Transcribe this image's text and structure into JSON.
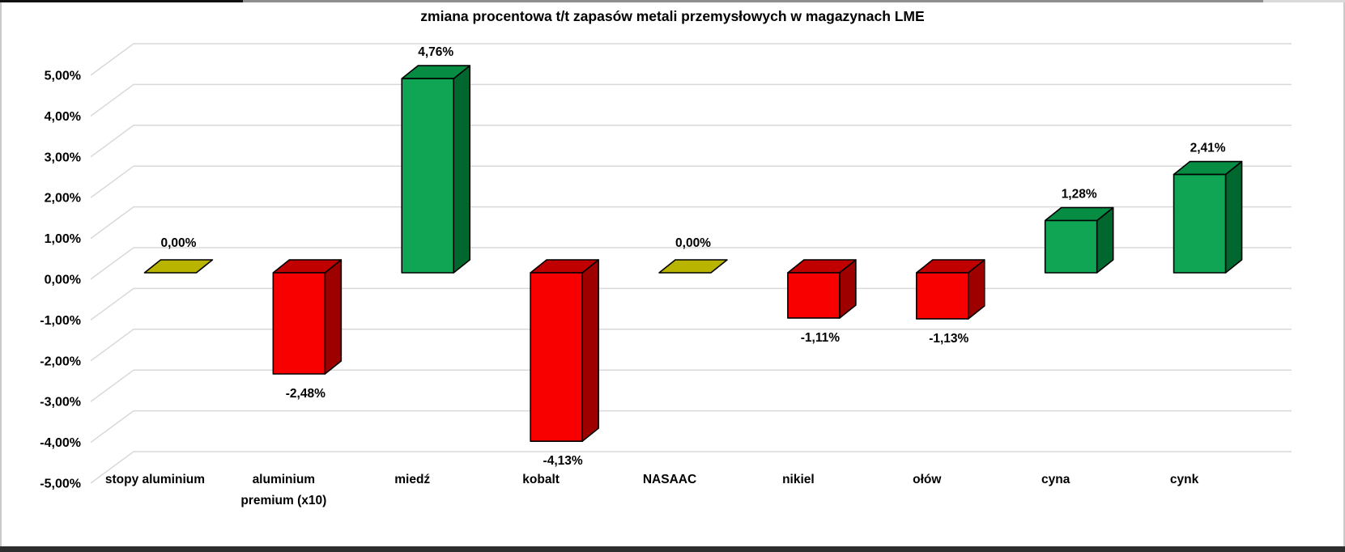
{
  "chart_data": {
    "type": "bar",
    "variant": "3d-column",
    "title": "zmiana procentowa t/t zapasów metali przemysłowych w magazynach LME",
    "categories": [
      "stopy aluminium",
      "aluminium premium (x10)",
      "miedź",
      "kobalt",
      "NASAAC",
      "nikiel",
      "ołów",
      "cyna",
      "cynk"
    ],
    "category_display": [
      "stopy aluminium",
      "aluminium\npremium (x10)",
      "miedź",
      "kobalt",
      "NASAAC",
      "nikiel",
      "ołów",
      "cyna",
      "cynk"
    ],
    "values": [
      0.0,
      -2.48,
      4.76,
      -4.13,
      0.0,
      -1.11,
      -1.13,
      1.28,
      2.41
    ],
    "value_labels": [
      "0,00%",
      "-2,48%",
      "4,76%",
      "-4,13%",
      "0,00%",
      "-1,11%",
      "-1,13%",
      "1,28%",
      "2,41%"
    ],
    "y_tick_values": [
      5,
      4,
      3,
      2,
      1,
      0,
      -1,
      -2,
      -3,
      -4,
      -5
    ],
    "y_tick_labels": [
      "5,00%",
      "4,00%",
      "3,00%",
      "2,00%",
      "1,00%",
      "0,00%",
      "-1,00%",
      "-2,00%",
      "-3,00%",
      "-4,00%",
      "-5,00%"
    ],
    "ylim": [
      -5,
      5
    ],
    "grid": true,
    "legend": "none",
    "colors": {
      "positive_front": "#0FA554",
      "positive_top": "#068C43",
      "positive_side": "#00672F",
      "negative_front": "#F80000",
      "negative_top": "#C00000",
      "negative_side": "#9E0000",
      "zero_fill": "#B9B400",
      "outline": "#000000",
      "gridline": "#D9D9D9",
      "text": "#000000"
    }
  }
}
